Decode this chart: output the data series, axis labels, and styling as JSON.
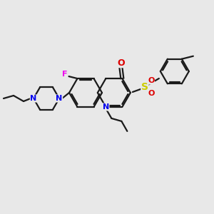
{
  "bg_color": "#e8e8e8",
  "bond_color": "#1a1a1a",
  "nitrogen_color": "#0000ee",
  "oxygen_color": "#dd0000",
  "fluorine_color": "#ee00ee",
  "sulfur_color": "#cccc00",
  "figsize": [
    3.0,
    3.0
  ],
  "dpi": 100,
  "xlim": [
    0,
    300
  ],
  "ylim": [
    0,
    300
  ]
}
